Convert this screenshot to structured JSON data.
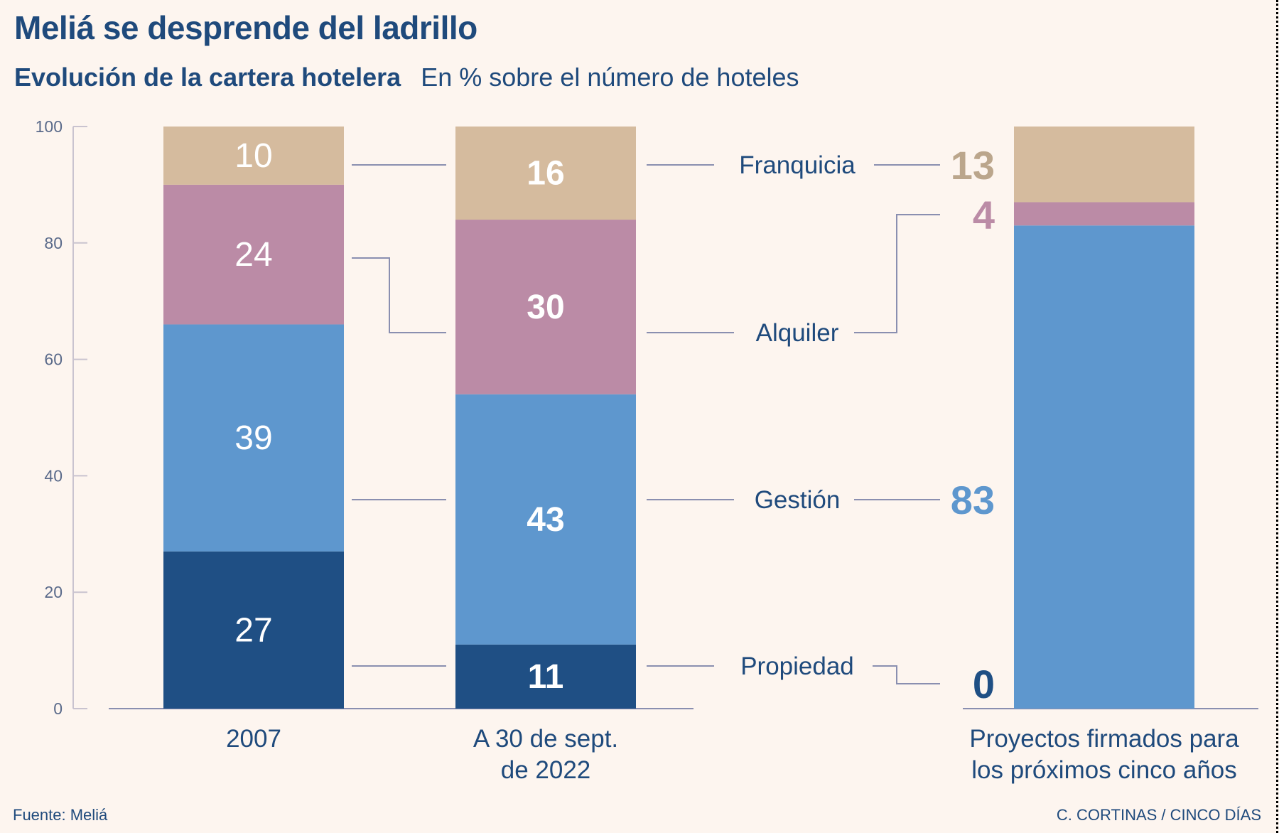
{
  "title": "Meliá se desprende del ladrillo",
  "subtitle": "Evolución de la cartera hotelera",
  "unit_note": "En % sobre el número de hoteles",
  "source": "Fuente: Meliá",
  "credit": "C. CORTINAS / CINCO DÍAS",
  "chart_data": {
    "type": "bar",
    "stacked": true,
    "ylim": [
      0,
      100
    ],
    "yticks": [
      0,
      20,
      40,
      60,
      80,
      100
    ],
    "grid": false,
    "categories": [
      [
        "2007"
      ],
      [
        "A 30 de sept.",
        "de 2022"
      ],
      [
        "Proyectos firmados para",
        "los próximos cinco años"
      ]
    ],
    "series": [
      {
        "name": "Propiedad",
        "values": [
          27,
          11,
          0
        ],
        "color": "#1f4f84"
      },
      {
        "name": "Gestión",
        "values": [
          39,
          43,
          83
        ],
        "color": "#5e97ce"
      },
      {
        "name": "Alquiler",
        "values": [
          24,
          30,
          4
        ],
        "color": "#bb8ba6"
      },
      {
        "name": "Franquicia",
        "values": [
          10,
          16,
          13
        ],
        "color": "#d5bb9e"
      }
    ],
    "label_colors": {
      "Propiedad": "#1f4f84",
      "Gestión": "#5e97ce",
      "Alquiler": "#bb8ba6",
      "Franquicia": "#bba68c"
    },
    "legend_placement": "between bars with connector lines"
  }
}
